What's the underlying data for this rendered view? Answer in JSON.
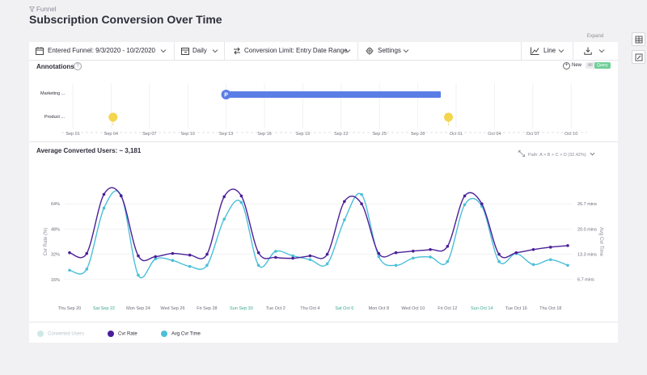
{
  "header": {
    "breadcrumb": "Funnel",
    "title": "Subscription Conversion Over Time",
    "expand_label": "Expand"
  },
  "toolbar": {
    "funnel_label": "Entered Funnel: 9/3/2020 - 10/2/2020",
    "interval_label": "Daily",
    "conversion_label": "Conversion Limit: Entry Date Range",
    "settings_label": "Settings",
    "chart_type_label": "Line"
  },
  "annotations": {
    "title": "Annotations",
    "help": "?",
    "new_label": "New",
    "segment_all": "All",
    "segment_query": "Query",
    "rows": [
      "Marketing ...",
      "Product ..."
    ],
    "dates": [
      "Sep 01",
      "Sep 04",
      "Sep 07",
      "Sep 10",
      "Sep 13",
      "Sep 16",
      "Sep 19",
      "Sep 22",
      "Sep 25",
      "Sep 28",
      "Oct 01",
      "Oct 04",
      "Oct 07",
      "Oct 10"
    ],
    "marker_label": "P"
  },
  "chart_header": {
    "metric_label": "Average Converted Users: ~ 3,181",
    "path_label": "Path: A > B > C > D (32.42%)"
  },
  "colors": {
    "accent_purple": "#4b1f98",
    "accent_cyan": "#4bbfd9",
    "annotation_blue": "#5b7ee6",
    "marker_yellow": "#f3d54e",
    "teal_label": "#3aa88f",
    "query_green": "#6fcf97"
  },
  "chart_data": {
    "type": "line",
    "x": [
      "Thu Sep 20",
      "Fri Sep 21",
      "Sat Sep 22",
      "Sun Sep 23",
      "Mon Sep 24",
      "Tue Sep 25",
      "Wed Sep 26",
      "Thu Sep 27",
      "Fri Sep 28",
      "Sat Sep 29",
      "Sun Sep 30",
      "Mon Oct 1",
      "Tue Oct 2",
      "Wed Oct 3",
      "Thu Oct 4",
      "Fri Oct 5",
      "Sat Oct 6",
      "Sun Oct 7",
      "Mon Oct 8",
      "Tue Oct 9",
      "Wed Oct 10",
      "Thu Oct 11",
      "Fri Oct 12",
      "Sat Oct 13",
      "Sun Oct 14",
      "Mon Oct 15",
      "Tue Oct 16",
      "Wed Oct 17",
      "Thu Oct 18",
      "Fri Oct 19"
    ],
    "x_tick_labels": [
      "Thu Sep 20",
      "Sat Sep 22",
      "Mon Sep 24",
      "Wed Sep 26",
      "Fri Sep 28",
      "Sun Sep 30",
      "Tue Oct 2",
      "Thu Oct 4",
      "Sat Oct 6",
      "Mon Oct 8",
      "Wed Oct 10",
      "Fri Oct 12",
      "Sun Oct 14",
      "Tue Oct 16",
      "Thu Oct 18"
    ],
    "weekend_ticks": [
      "Sat Sep 22",
      "Sun Sep 30",
      "Sat Oct 6",
      "Sun Oct 14"
    ],
    "ylabel_left": "Cvr Rate (%)",
    "ylabel_right": "Avg Cvr Time",
    "y_left_ticks": [
      "64%",
      "48%",
      "32%",
      "16%"
    ],
    "y_left_range": [
      0,
      80
    ],
    "y_right_ticks": [
      "26.7 mins",
      "20.0 mins",
      "13.3 mins",
      "6.7 mins"
    ],
    "y_right_range": [
      0,
      33.3
    ],
    "series": [
      {
        "name": "Cvr Rate",
        "axis": "left",
        "values": [
          33,
          32.5,
          70,
          69,
          31,
          30.5,
          32.5,
          31.5,
          32,
          68.5,
          69,
          33,
          30,
          29.5,
          31,
          32,
          65.5,
          64,
          32.5,
          33,
          34,
          35,
          37,
          69,
          64,
          32,
          33,
          35,
          36.5,
          37.5
        ]
      },
      {
        "name": "Avg Cvr Time",
        "axis": "right",
        "values": [
          9.1,
          9.4,
          25.5,
          28.9,
          7.8,
          12.1,
          11.7,
          10.1,
          10.4,
          22.6,
          27.0,
          10.4,
          14.1,
          12.9,
          11.9,
          10.8,
          22.4,
          29.1,
          12.7,
          10.4,
          12.3,
          12.6,
          11.4,
          26.4,
          26.0,
          11.4,
          13.5,
          10.6,
          11.9,
          10.4
        ]
      }
    ],
    "legend": [
      "Converted Users",
      "Cvr Rate",
      "Avg Cvr Time"
    ],
    "legend_placement": "bottom-left",
    "grid": "horizontal"
  }
}
